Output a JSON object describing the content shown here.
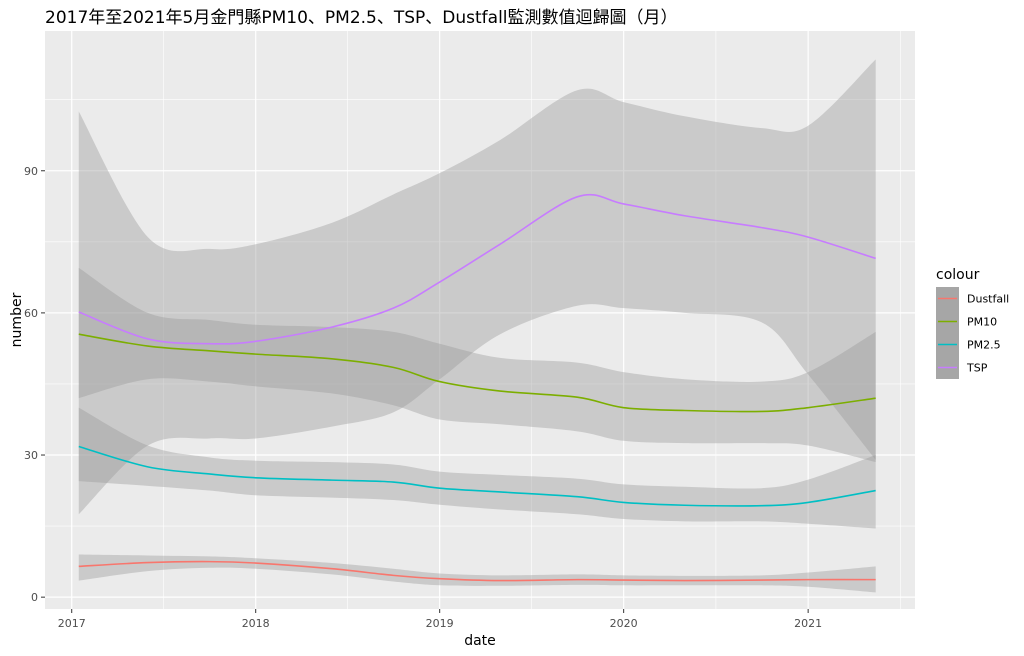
{
  "chart_data": {
    "type": "line",
    "title": "2017年至2021年5月金門縣PM10、PM2.5、TSP、Dustfall監測數值迴歸圖（月）",
    "xlabel": "date",
    "ylabel": "number",
    "xlim": [
      "2016-11-09",
      "2021-08-01"
    ],
    "ylim": [
      -2.5,
      119.5
    ],
    "x_ticks": [
      "2017",
      "2018",
      "2019",
      "2020",
      "2021"
    ],
    "x_tick_dates": [
      "2017-01-01",
      "2018-01-01",
      "2019-01-01",
      "2020-01-01",
      "2021-01-01"
    ],
    "y_ticks": [
      0,
      30,
      60,
      90
    ],
    "grid": true,
    "legend": {
      "title": "colour",
      "position": "right"
    },
    "colors": {
      "Dustfall": "#F8766D",
      "PM10": "#7CAE00",
      "PM2.5": "#00BFC4",
      "TSP": "#C77CFF",
      "ribbon": "#999999",
      "panel": "#EBEBEB",
      "grid": "#FFFFFF"
    },
    "x": [
      "2017-01-15",
      "2017-06-01",
      "2017-10-01",
      "2018-01-01",
      "2018-06-01",
      "2018-10-01",
      "2019-01-01",
      "2019-05-01",
      "2019-10-01",
      "2020-01-01",
      "2020-05-01",
      "2020-10-01",
      "2021-01-01",
      "2021-05-15"
    ],
    "series": [
      {
        "name": "Dustfall",
        "values": [
          6.5,
          7.3,
          7.5,
          7.2,
          6.0,
          4.6,
          3.9,
          3.5,
          3.7,
          3.6,
          3.5,
          3.6,
          3.7,
          3.7
        ],
        "lower": [
          3.5,
          5.5,
          6.2,
          6.0,
          4.8,
          3.3,
          2.5,
          2.4,
          2.6,
          2.5,
          2.5,
          2.5,
          2.2,
          1.0
        ],
        "upper": [
          9.0,
          8.8,
          8.6,
          8.2,
          7.2,
          6.0,
          5.0,
          4.6,
          4.8,
          4.6,
          4.5,
          4.6,
          5.2,
          6.5
        ]
      },
      {
        "name": "PM10",
        "values": [
          55.5,
          53.0,
          52.0,
          51.3,
          50.3,
          48.5,
          45.5,
          43.5,
          42.2,
          40.0,
          39.4,
          39.2,
          40.0,
          42.0
        ],
        "lower": [
          42.0,
          46.0,
          45.5,
          44.5,
          43.0,
          40.5,
          37.5,
          36.5,
          35.0,
          33.0,
          32.5,
          32.5,
          32.0,
          28.5
        ],
        "upper": [
          69.5,
          60.0,
          58.5,
          57.5,
          57.0,
          56.0,
          53.5,
          50.5,
          49.5,
          47.5,
          46.0,
          45.5,
          47.5,
          56.0
        ]
      },
      {
        "name": "PM2.5",
        "values": [
          31.8,
          27.5,
          26.0,
          25.2,
          24.7,
          24.3,
          23.0,
          22.2,
          21.2,
          20.0,
          19.4,
          19.3,
          20.0,
          22.5
        ],
        "lower": [
          24.5,
          23.5,
          22.5,
          21.5,
          21.0,
          20.5,
          19.5,
          18.5,
          17.5,
          16.5,
          16.0,
          16.0,
          15.5,
          14.5
        ],
        "upper": [
          40.0,
          32.0,
          29.5,
          28.8,
          28.5,
          28.0,
          26.5,
          25.8,
          25.0,
          23.8,
          23.3,
          23.0,
          24.8,
          30.0
        ]
      },
      {
        "name": "TSP",
        "values": [
          60.2,
          54.5,
          53.5,
          54.0,
          57.0,
          61.0,
          66.5,
          74.5,
          84.5,
          83.0,
          80.5,
          78.0,
          76.0,
          71.5
        ],
        "lower": [
          17.5,
          32.0,
          33.5,
          33.5,
          36.0,
          39.0,
          46.0,
          55.5,
          61.5,
          61.0,
          60.0,
          58.0,
          47.0,
          29.0
        ],
        "upper": [
          102.5,
          76.0,
          73.5,
          74.5,
          79.0,
          85.0,
          89.5,
          96.5,
          107.0,
          104.5,
          101.5,
          99.0,
          99.5,
          113.5
        ]
      }
    ]
  }
}
